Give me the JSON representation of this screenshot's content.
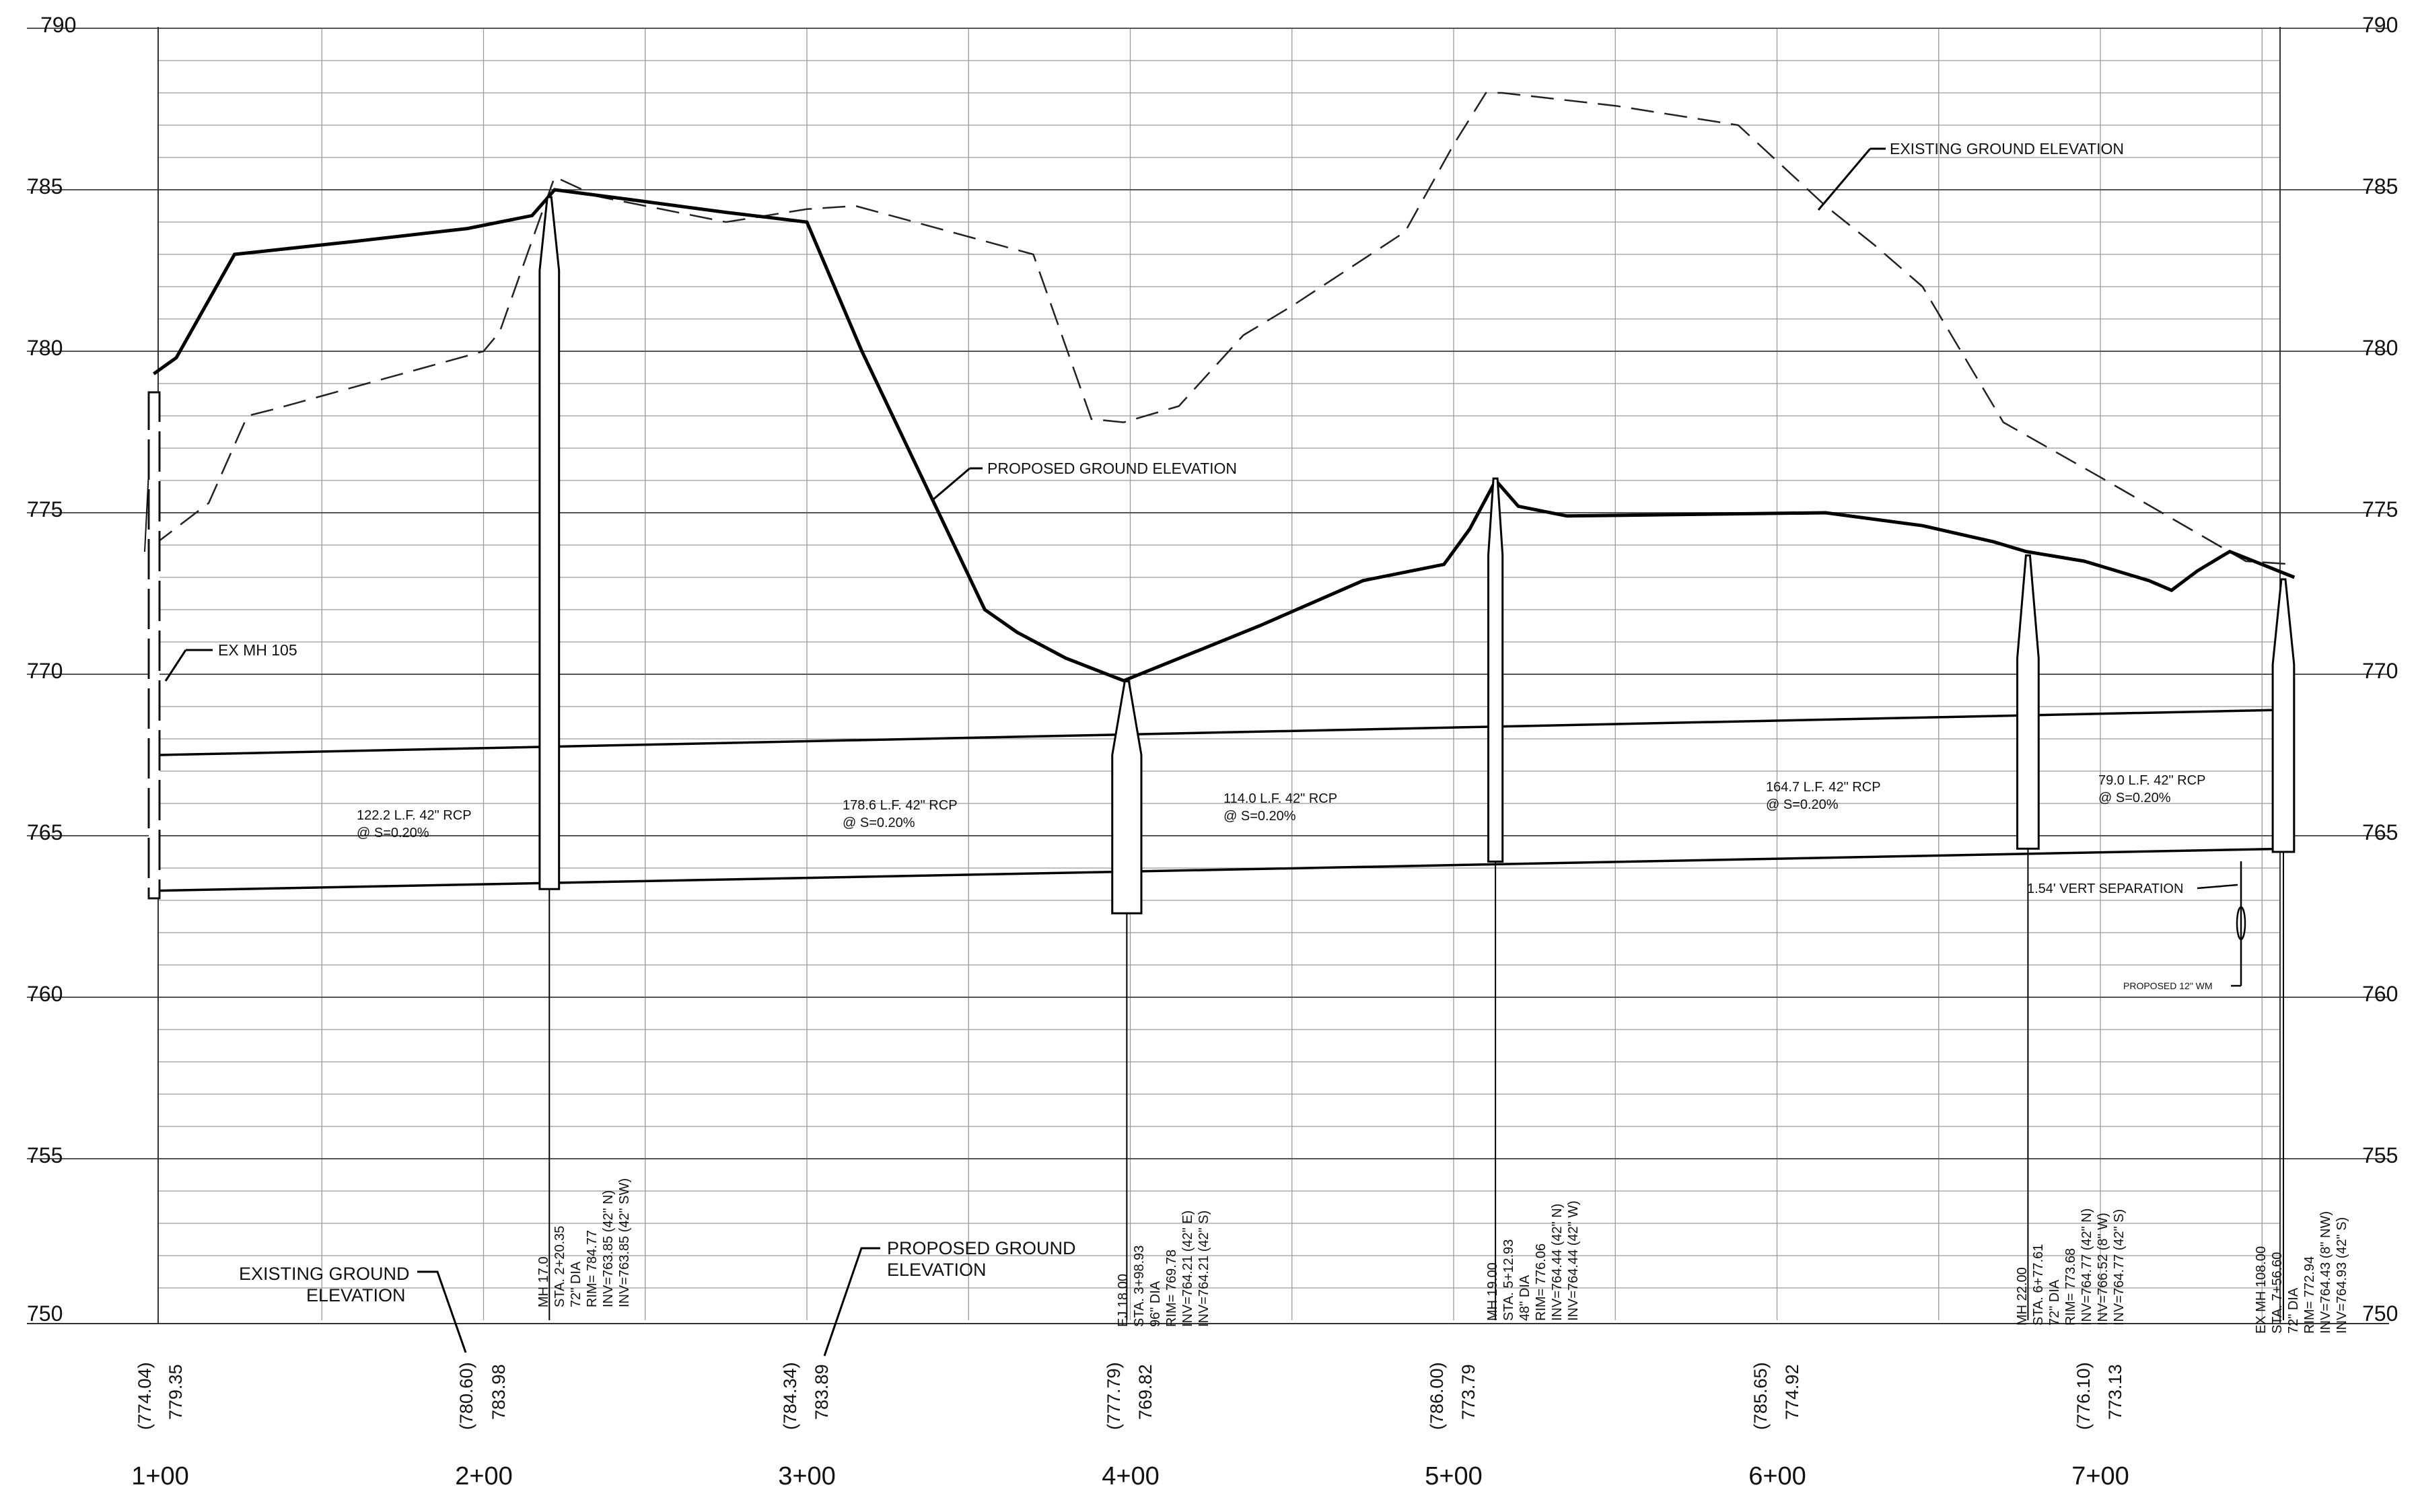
{
  "elevation_axis": {
    "min": 750,
    "max": 790,
    "major_labels": [
      "790",
      "785",
      "780",
      "775",
      "770",
      "765",
      "760",
      "755",
      "750"
    ]
  },
  "station_axis": {
    "min": 0.97,
    "max": 7.6,
    "labels": [
      "1+00",
      "2+00",
      "3+00",
      "4+00",
      "5+00",
      "6+00",
      "7+00"
    ]
  },
  "profile_lines": {
    "existing_ground": [
      [
        0.98,
        774.0
      ],
      [
        1.15,
        775.3
      ],
      [
        1.27,
        778.0
      ],
      [
        1.35,
        778.2
      ],
      [
        2.0,
        780.0
      ],
      [
        2.05,
        780.6
      ],
      [
        2.22,
        785.4
      ],
      [
        2.35,
        784.8
      ],
      [
        2.75,
        784.0
      ],
      [
        3.0,
        784.4
      ],
      [
        3.15,
        784.5
      ],
      [
        3.7,
        783.0
      ],
      [
        3.88,
        777.9
      ],
      [
        3.98,
        777.8
      ],
      [
        4.15,
        778.3
      ],
      [
        4.35,
        780.5
      ],
      [
        4.5,
        781.4
      ],
      [
        4.85,
        783.7
      ],
      [
        5.0,
        786.4
      ],
      [
        5.1,
        788.0
      ],
      [
        5.15,
        788.0
      ],
      [
        5.5,
        787.6
      ],
      [
        5.88,
        787.0
      ],
      [
        6.15,
        784.5
      ],
      [
        6.3,
        783.3
      ],
      [
        6.45,
        782.0
      ],
      [
        6.7,
        777.8
      ],
      [
        7.0,
        776.1
      ],
      [
        7.45,
        773.5
      ],
      [
        7.6,
        773.4
      ]
    ],
    "proposed_ground": [
      [
        0.98,
        779.3
      ],
      [
        1.05,
        779.8
      ],
      [
        1.23,
        783.0
      ],
      [
        1.6,
        783.4
      ],
      [
        1.95,
        783.8
      ],
      [
        2.15,
        784.2
      ],
      [
        2.22,
        785.0
      ],
      [
        2.45,
        784.7
      ],
      [
        2.75,
        784.3
      ],
      [
        3.0,
        784.0
      ],
      [
        3.17,
        780.0
      ],
      [
        3.55,
        772.0
      ],
      [
        3.65,
        771.3
      ],
      [
        3.8,
        770.5
      ],
      [
        3.98,
        769.8
      ],
      [
        4.4,
        771.5
      ],
      [
        4.72,
        772.9
      ],
      [
        4.97,
        773.4
      ],
      [
        5.05,
        774.5
      ],
      [
        5.13,
        776.0
      ],
      [
        5.2,
        775.2
      ],
      [
        5.35,
        774.9
      ],
      [
        6.15,
        775.0
      ],
      [
        6.45,
        774.6
      ],
      [
        6.67,
        774.1
      ],
      [
        6.77,
        773.8
      ],
      [
        6.95,
        773.5
      ],
      [
        7.15,
        772.9
      ],
      [
        7.22,
        772.6
      ],
      [
        7.3,
        773.2
      ],
      [
        7.4,
        773.8
      ],
      [
        7.6,
        773.0
      ]
    ],
    "pipe_top": [
      [
        1.0,
        767.5
      ],
      [
        7.58,
        768.9
      ]
    ],
    "pipe_bottom": [
      [
        1.0,
        763.3
      ],
      [
        7.58,
        764.6
      ]
    ]
  },
  "manholes": [
    {
      "sta": 2.2035,
      "rim": 784.77,
      "bottom": 763.35,
      "half_width": 0.03,
      "taper": 782.5
    },
    {
      "sta": 3.9893,
      "rim": 769.78,
      "bottom": 762.6,
      "half_width": 0.045,
      "taper": 767.5
    },
    {
      "sta": 5.1293,
      "rim": 776.06,
      "bottom": 764.2,
      "half_width": 0.022,
      "taper": 773.7
    },
    {
      "sta": 6.7761,
      "rim": 773.68,
      "bottom": 764.6,
      "half_width": 0.033,
      "taper": 770.5
    },
    {
      "sta": 7.566,
      "rim": 772.94,
      "bottom": 764.5,
      "half_width": 0.033,
      "taper": 770.3
    }
  ],
  "ex_mh": {
    "sta": 0.99,
    "rim": 779.0,
    "bottom": 763.2
  },
  "callouts": {
    "existing_ground_top": "EXISTING GROUND ELEVATION",
    "proposed_ground_mid": "PROPOSED GROUND ELEVATION",
    "ex_mh_105": "EX MH 105",
    "vert_separation": "1.54' VERT SEPARATION",
    "proposed_wm": "PROPOSED 12\" WM",
    "bottom_existing_l1": "EXISTING GROUND",
    "bottom_existing_l2": "ELEVATION",
    "bottom_proposed_l1": "PROPOSED GROUND",
    "bottom_proposed_l2": "ELEVATION"
  },
  "pipe_runs": [
    {
      "line1": "122.2 L.F. 42\" RCP",
      "line2": "@ S=0.20%"
    },
    {
      "line1": "178.6 L.F. 42\" RCP",
      "line2": "@ S=0.20%"
    },
    {
      "line1": "114.0 L.F. 42\" RCP",
      "line2": "@ S=0.20%"
    },
    {
      "line1": "164.7 L.F. 42\" RCP",
      "line2": "@ S=0.20%"
    },
    {
      "line1": "79.0 L.F. 42\" RCP",
      "line2": "@ S=0.20%"
    }
  ],
  "structure_labels": [
    {
      "lines": [
        "MH 17.0",
        "STA. 2+20.35",
        "72\" DIA",
        "RIM= 784.77",
        "INV=763.85 (42\" N)",
        "INV=763.85 (42\" SW)"
      ]
    },
    {
      "lines": [
        "EJ 18.00",
        "STA. 3+98.93",
        "96\" DIA",
        "RIM= 769.78",
        "INV=764.21 (42\" E)",
        "INV=764.21 (42\" S)"
      ]
    },
    {
      "lines": [
        "MH 19.00",
        "STA. 5+12.93",
        "48\" DIA",
        "RIM= 776.06",
        "INV=764.44 (42\" N)",
        "INV=764.44 (42\" W)"
      ]
    },
    {
      "lines": [
        "MH 22.00",
        "STA. 6+77.61",
        "72\" DIA",
        "RIM= 773.68",
        "INV=764.77 (42\" N)",
        "INV=766.52 (8\" W)",
        "INV=764.77 (42\" S)"
      ]
    },
    {
      "lines": [
        "EX MH 108.00",
        "STA. 7+56.60",
        "72\" DIA",
        "RIM= 772.94",
        "INV=764.43 (8\" NW)",
        "INV=764.93 (42\" S)"
      ]
    }
  ],
  "station_elevations": [
    {
      "existing": "(774.04)",
      "proposed": "779.35"
    },
    {
      "existing": "(780.60)",
      "proposed": "783.98"
    },
    {
      "existing": "(784.34)",
      "proposed": "783.89"
    },
    {
      "existing": "(777.79)",
      "proposed": "769.82"
    },
    {
      "existing": "(786.00)",
      "proposed": "773.79"
    },
    {
      "existing": "(785.65)",
      "proposed": "774.92"
    },
    {
      "existing": "(776.10)",
      "proposed": "773.13"
    }
  ]
}
